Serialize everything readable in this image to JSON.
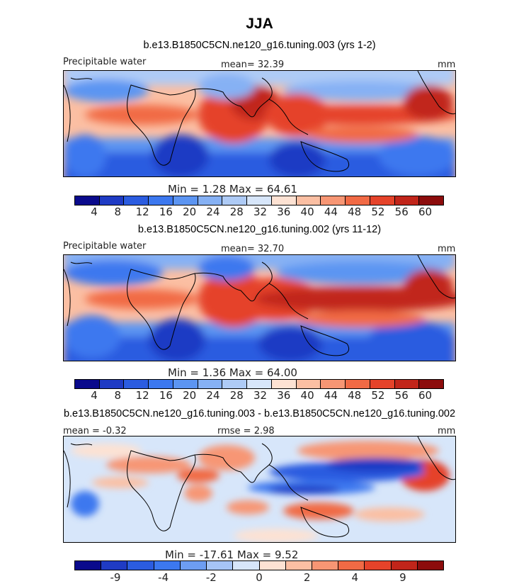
{
  "title": "JJA",
  "panels": [
    {
      "subtitle": "b.e13.B1850C5CN.ne120_g16.tuning.003 (yrs 1-2)",
      "left": "Precipitable water",
      "center": "mean=  32.39",
      "right": "mm",
      "minmax": "Min =    1.28  Max =   64.61",
      "ticks": [
        "4",
        "8",
        "12",
        "16",
        "20",
        "24",
        "28",
        "32",
        "36",
        "40",
        "44",
        "48",
        "52",
        "56",
        "60"
      ]
    },
    {
      "subtitle": "b.e13.B1850C5CN.ne120_g16.tuning.002 (yrs 11-12)",
      "left": "Precipitable water",
      "center": "mean=  32.70",
      "right": "mm",
      "minmax": "Min =    1.36  Max =   64.00",
      "ticks": [
        "4",
        "8",
        "12",
        "16",
        "20",
        "24",
        "28",
        "32",
        "36",
        "40",
        "44",
        "48",
        "52",
        "56",
        "60"
      ]
    },
    {
      "subtitle": "b.e13.B1850C5CN.ne120_g16.tuning.003 - b.e13.B1850C5CN.ne120_g16.tuning.002",
      "left": "mean =  -0.32",
      "center": "rmse =   2.98",
      "right": "mm",
      "minmax": "Min =  -17.61  Max =    9.52",
      "ticks": [
        "-9",
        "-4",
        "-2",
        "0",
        "2",
        "4",
        "9"
      ]
    }
  ],
  "colors": {
    "seq": [
      "#0a0a8c",
      "#1f3bc4",
      "#2b5ce0",
      "#3c78ef",
      "#5c95f2",
      "#86b1f4",
      "#aecbf6",
      "#d7e6fa",
      "#fde2d3",
      "#fbbfa3",
      "#f79674",
      "#f16a45",
      "#e5432a",
      "#c1251a",
      "#8c0c0c"
    ],
    "div": [
      "#0a0a8c",
      "#1f3bc4",
      "#2b5ce0",
      "#3c78ef",
      "#6d9df2",
      "#a6c4f5",
      "#d7e6fa",
      "#fde2d3",
      "#fbbfa3",
      "#f79674",
      "#f16a45",
      "#e5432a",
      "#c1251a",
      "#8c0c0c"
    ]
  }
}
